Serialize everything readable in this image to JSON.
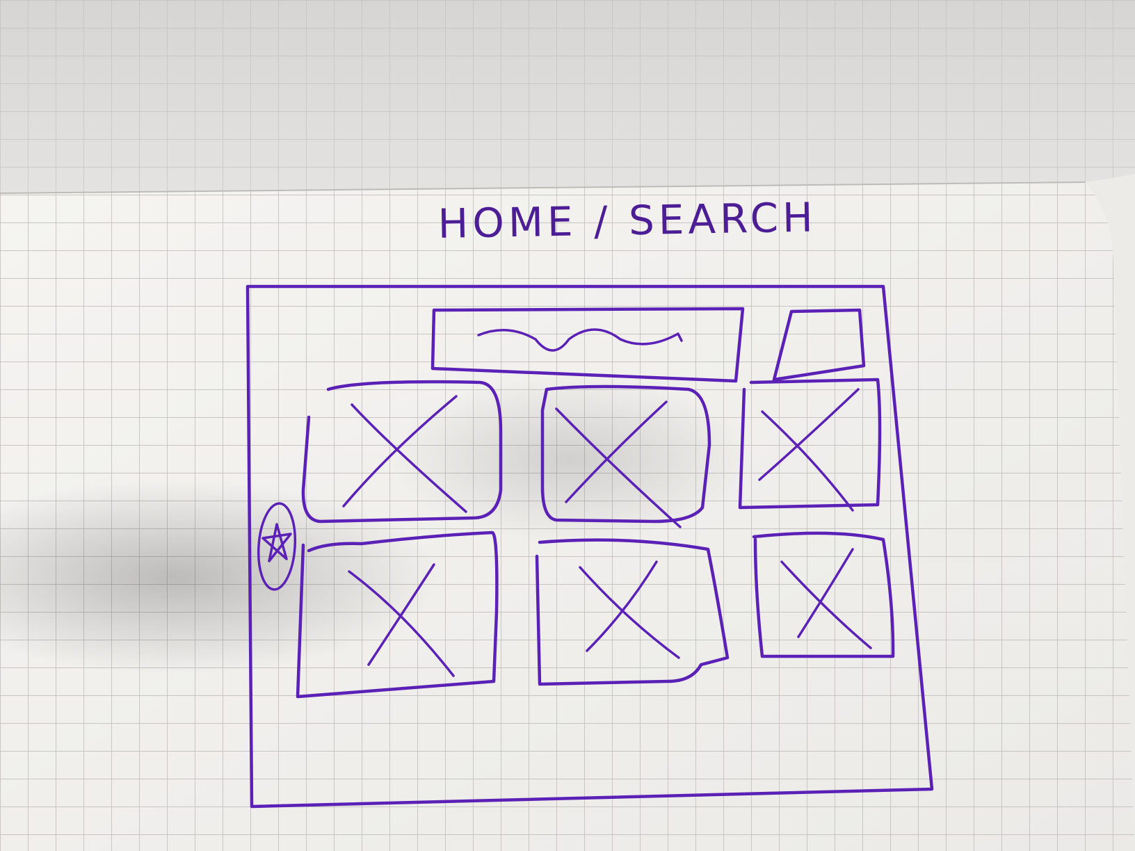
{
  "sketch": {
    "title": "HOME / SEARCH",
    "ink_color": "#5b21b6",
    "paper_color": "#f3f2ef",
    "grid_color": "#b9b6b3",
    "icon": "star-icon",
    "image_placeholders": 6
  }
}
